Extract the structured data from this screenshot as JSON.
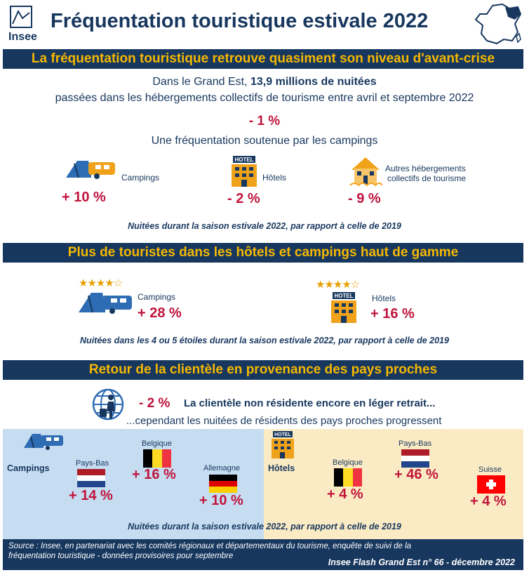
{
  "header": {
    "logo_text": "Insee",
    "title": "Fréquentation touristique estivale 2022"
  },
  "section1": {
    "band": "La fréquentation touristique retrouve quasiment son niveau d'avant-crise",
    "line1_prefix": "Dans le Grand Est, ",
    "line1_bold": "13,9 millions de nuitées",
    "line2": "passées dans les hébergements collectifs de tourisme entre avril et septembre 2022",
    "total_change": "- 1 %",
    "subtitle": "Une fréquentation soutenue par les campings",
    "items": [
      {
        "label": "Campings",
        "value": "+ 10 %"
      },
      {
        "label": "Hôtels",
        "value": "- 2 %"
      },
      {
        "label_line1": "Autres hébergements",
        "label_line2": "collectifs de tourisme",
        "value": "- 9 %"
      }
    ],
    "caption": "Nuitées durant la saison estivale 2022, par rapport à celle de 2019"
  },
  "section2": {
    "band": "Plus de touristes dans les hôtels et campings haut de gamme",
    "items": [
      {
        "label": "Campings",
        "value": "+ 28 %",
        "stars": "★★★★☆"
      },
      {
        "label": "Hôtels",
        "value": "+ 16 %",
        "stars": "★★★★☆"
      }
    ],
    "caption": "Nuitées dans les 4 ou 5 étoiles durant la saison estivale 2022, par rapport à celle de 2019"
  },
  "section3": {
    "band": "Retour de la clientèle en provenance des pays proches",
    "change": "- 2 %",
    "line1": "La clientèle non résidente encore en léger retrait...",
    "line2": "...cependant les nuitées de résidents des pays proches progressent",
    "campings": {
      "label": "Campings",
      "countries": [
        {
          "name": "Pays-Bas",
          "value": "+ 14 %"
        },
        {
          "name": "Belgique",
          "value": "+ 16 %"
        },
        {
          "name": "Allemagne",
          "value": "+ 10 %"
        }
      ]
    },
    "hotels": {
      "label": "Hôtels",
      "countries": [
        {
          "name": "Belgique",
          "value": "+ 4 %"
        },
        {
          "name": "Pays-Bas",
          "value": "+ 46 %"
        },
        {
          "name": "Suisse",
          "value": "+ 4 %"
        }
      ]
    },
    "caption": "Nuitées durant la saison estivale 2022, par rapport à celle de 2019"
  },
  "footer": {
    "source_line1": "Source : Insee, en partenariat avec les comités régionaux et départementaux du tourisme, enquête de suivi de la",
    "source_line2": "fréquentation touristique - données provisoires pour septembre",
    "publication": "Insee Flash Grand Est n° 66 - décembre 2022"
  },
  "colors": {
    "navy": "#17375e",
    "gold": "#f5b800",
    "red": "#c0143c",
    "icon_blue": "#2e6cb3",
    "icon_orange": "#f0a21a"
  },
  "icons": [
    "insee-logo-icon",
    "france-map-icon",
    "camping-icon",
    "hotel-icon",
    "other-lodging-icon",
    "globe-traveler-icon",
    "flag-netherlands-icon",
    "flag-belgium-icon",
    "flag-germany-icon",
    "flag-switzerland-icon"
  ]
}
